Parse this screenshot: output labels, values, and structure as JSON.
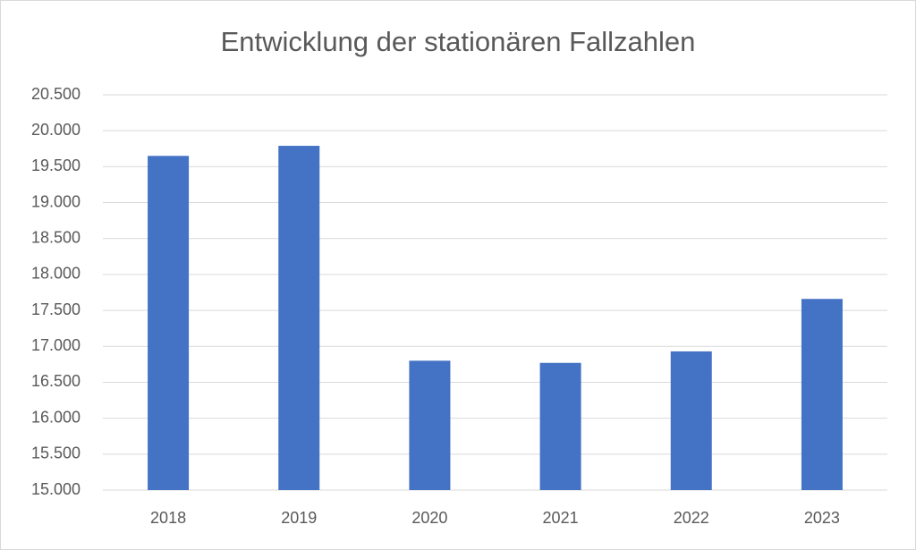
{
  "chart_data": {
    "type": "bar",
    "title": "Entwicklung der stationären Fallzahlen",
    "categories": [
      "2018",
      "2019",
      "2020",
      "2021",
      "2022",
      "2023"
    ],
    "values": [
      19650,
      19790,
      16800,
      16770,
      16930,
      17660
    ],
    "color": "#4472c4",
    "ylim": [
      15000,
      20500
    ],
    "yticks": [
      {
        "value": 15000,
        "label": "15.000"
      },
      {
        "value": 15500,
        "label": "15.500"
      },
      {
        "value": 16000,
        "label": "16.000"
      },
      {
        "value": 16500,
        "label": "16.500"
      },
      {
        "value": 17000,
        "label": "17.000"
      },
      {
        "value": 17500,
        "label": "17.500"
      },
      {
        "value": 18000,
        "label": "18.000"
      },
      {
        "value": 18500,
        "label": "18.500"
      },
      {
        "value": 19000,
        "label": "19.000"
      },
      {
        "value": 19500,
        "label": "19.500"
      },
      {
        "value": 20000,
        "label": "20.000"
      },
      {
        "value": 20500,
        "label": "20.500"
      }
    ],
    "grid": true
  }
}
